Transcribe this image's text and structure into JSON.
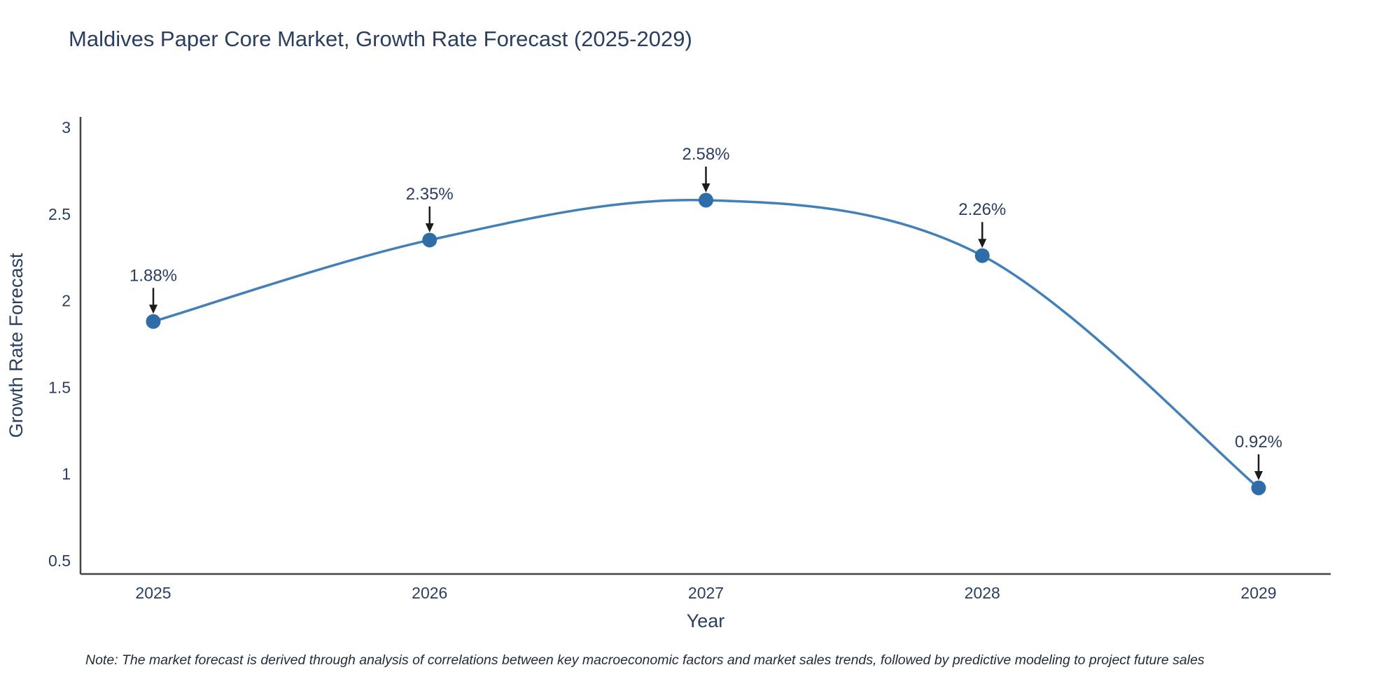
{
  "note": "Note: The market forecast is derived through analysis of correlations between key macroeconomic factors and market sales trends, followed by predictive modeling to project future sales",
  "chart_data": {
    "type": "line",
    "title": "Maldives Paper Core Market, Growth Rate Forecast (2025-2029)",
    "xlabel": "Year",
    "ylabel": "Growth Rate Forecast",
    "categories": [
      "2025",
      "2026",
      "2027",
      "2028",
      "2029"
    ],
    "values": [
      1.88,
      2.35,
      2.58,
      2.26,
      0.92
    ],
    "point_labels": [
      "1.88%",
      "2.35%",
      "2.58%",
      "2.26%",
      "0.92%"
    ],
    "ylim": [
      0.5,
      3
    ],
    "yticks": [
      0.5,
      1,
      1.5,
      2,
      2.5,
      3
    ],
    "grid": false,
    "legend": "none",
    "line_color": "#4380b8",
    "marker_color": "#2e6da8",
    "axis_color": "#444444",
    "text_color": "#2a3f5f",
    "arrow_color": "#1c1c1c"
  }
}
